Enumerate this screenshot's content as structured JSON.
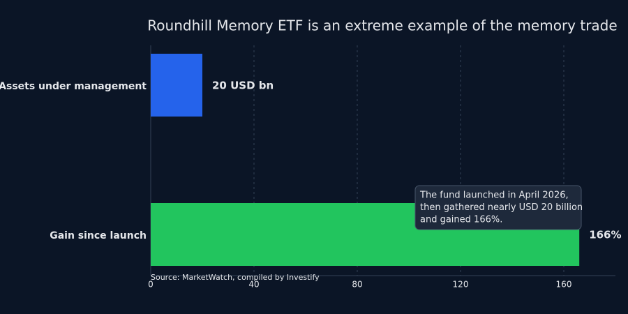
{
  "chart_data": {
    "type": "barh",
    "title": "Roundhill Memory ETF is an extreme example of the memory trade",
    "categories": [
      "Assets under management",
      "Gain since launch"
    ],
    "values": [
      20,
      166
    ],
    "value_labels": [
      "20 USD bn",
      "166%"
    ],
    "colors": [
      "#2563eb",
      "#22c55e"
    ],
    "xlim": [
      0,
      180
    ],
    "xticks": [
      0,
      40,
      80,
      120,
      160
    ],
    "grid": true,
    "annotation": [
      "The fund launched in April 2026,",
      "then gathered nearly USD 20 billion",
      "and gained 166%."
    ],
    "source": "Source: MarketWatch, compiled by Investify"
  }
}
